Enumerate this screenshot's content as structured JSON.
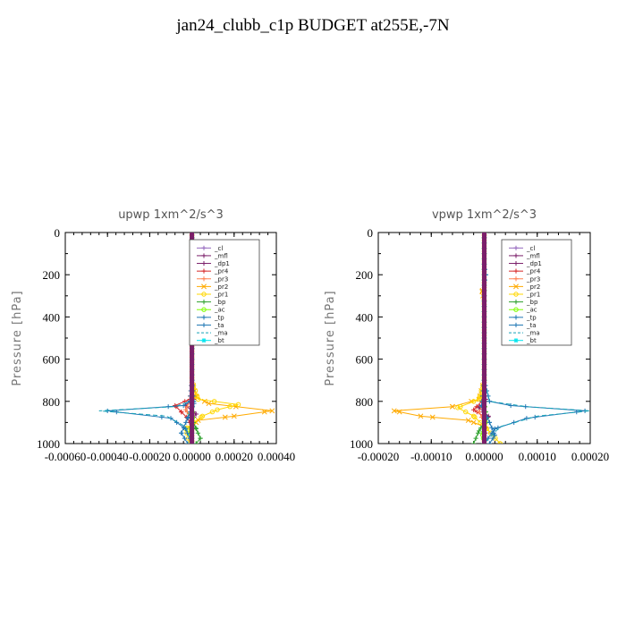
{
  "page_title": "jan24_clubb_c1p  BUDGET at255E,-7N",
  "chart_data": [
    {
      "type": "line",
      "title": "upwp   1xm^2/s^3",
      "ylabel": "Pressure [hPa]",
      "xlim": [
        -0.0006,
        0.0004
      ],
      "ylim": [
        1000,
        0
      ],
      "xticks": [
        "-0.00060",
        "-0.00040",
        "-0.00020",
        "0.00000",
        "0.00020",
        "0.00040"
      ],
      "yticks": [
        "0",
        "200",
        "400",
        "600",
        "800",
        "1000"
      ],
      "legend_position": "top-right",
      "series": [
        {
          "name": "_cl",
          "color": "#9467bd",
          "marker": "+",
          "dash": "",
          "points": [
            [
              0.0,
              0
            ],
            [
              0.0,
              200
            ],
            [
              0.0,
              400
            ],
            [
              0.0,
              600
            ],
            [
              0.0,
              800
            ],
            [
              0.0,
              900
            ],
            [
              0.0,
              1000
            ]
          ]
        },
        {
          "name": "_mfl",
          "color": "#7b1f6a",
          "marker": "+",
          "dash": "",
          "points": [
            [
              0.0,
              0
            ],
            [
              0.0,
              400
            ],
            [
              0.0,
              700
            ],
            [
              5e-06,
              800
            ],
            [
              -8e-06,
              850
            ],
            [
              4e-06,
              900
            ],
            [
              0.0,
              950
            ],
            [
              0.0,
              1000
            ]
          ]
        },
        {
          "name": "_dp1",
          "color": "#7b1f6a",
          "marker": "+",
          "dash": "",
          "points": [
            [
              0.0,
              0
            ],
            [
              0.0,
              700
            ],
            [
              1e-05,
              790
            ],
            [
              -3e-05,
              820
            ],
            [
              2e-05,
              860
            ],
            [
              -1e-05,
              900
            ],
            [
              0.0,
              1000
            ]
          ]
        },
        {
          "name": "_pr4",
          "color": "#d62728",
          "marker": "+",
          "dash": "",
          "points": [
            [
              0.0,
              0
            ],
            [
              0.0,
              700
            ],
            [
              -1e-05,
              790
            ],
            [
              -8e-05,
              820
            ],
            [
              -5e-05,
              850
            ],
            [
              -2e-05,
              880
            ],
            [
              0.0,
              920
            ],
            [
              0.0,
              1000
            ]
          ]
        },
        {
          "name": "_pr3",
          "color": "#ff7f50",
          "marker": "+",
          "dash": "",
          "points": [
            [
              0.0,
              0
            ],
            [
              0.0,
              700
            ],
            [
              -1e-05,
              800
            ],
            [
              -3e-05,
              840
            ],
            [
              0.0,
              880
            ],
            [
              0.0,
              1000
            ]
          ]
        },
        {
          "name": "_pr2",
          "color": "#ffaa00",
          "marker": "x",
          "dash": "",
          "points": [
            [
              0.0,
              0
            ],
            [
              0.0,
              700
            ],
            [
              2e-05,
              780
            ],
            [
              8e-05,
              810
            ],
            [
              0.00038,
              845
            ],
            [
              0.0002,
              870
            ],
            [
              3e-05,
              890
            ],
            [
              0.0,
              920
            ],
            [
              0.0,
              1000
            ]
          ]
        },
        {
          "name": "_pr1",
          "color": "#ffd700",
          "marker": "o",
          "dash": "",
          "points": [
            [
              0.0,
              0
            ],
            [
              0.0,
              700
            ],
            [
              3e-05,
              790
            ],
            [
              0.00022,
              815
            ],
            [
              0.00012,
              840
            ],
            [
              5e-05,
              870
            ],
            [
              -3e-05,
              930
            ],
            [
              -1e-05,
              1000
            ]
          ]
        },
        {
          "name": "_bp",
          "color": "#2ca02c",
          "marker": "+",
          "dash": "",
          "points": [
            [
              0.0,
              0
            ],
            [
              0.0,
              700
            ],
            [
              5e-06,
              800
            ],
            [
              -1e-05,
              860
            ],
            [
              2e-05,
              930
            ],
            [
              4e-05,
              975
            ],
            [
              2e-05,
              1000
            ]
          ]
        },
        {
          "name": "_ac",
          "color": "#7fff00",
          "marker": "o",
          "dash": "",
          "points": [
            [
              0.0,
              0
            ],
            [
              0.0,
              800
            ],
            [
              3e-06,
              880
            ],
            [
              -5e-06,
              940
            ],
            [
              0.0,
              1000
            ]
          ]
        },
        {
          "name": "_tp",
          "color": "#1f77b4",
          "marker": "+",
          "dash": "",
          "points": [
            [
              0.0,
              0
            ],
            [
              0.0,
              700
            ],
            [
              -1e-05,
              800
            ],
            [
              -4e-05,
              820
            ],
            [
              -0.0004,
              845
            ],
            [
              -0.0001,
              880
            ],
            [
              -3e-05,
              930
            ],
            [
              0.0,
              1000
            ]
          ]
        },
        {
          "name": "_ta",
          "color": "#1f77b4",
          "marker": "+",
          "dash": "",
          "points": [
            [
              0.0,
              0
            ],
            [
              0.0,
              700
            ],
            [
              1e-05,
              810
            ],
            [
              -2e-05,
              880
            ],
            [
              -5e-05,
              950
            ],
            [
              -2e-05,
              1000
            ]
          ]
        },
        {
          "name": "_ma",
          "color": "#17a2b8",
          "marker": "",
          "dash": "5,3",
          "points": [
            [
              0.0,
              0
            ],
            [
              0.0,
              700
            ],
            [
              -1e-05,
              800
            ],
            [
              -8e-05,
              825
            ],
            [
              -0.00044,
              845
            ],
            [
              -0.00012,
              870
            ],
            [
              -3e-05,
              920
            ],
            [
              0.0,
              1000
            ]
          ]
        },
        {
          "name": "_bt",
          "color": "#00e5ee",
          "marker": "*",
          "dash": "",
          "points": [
            [
              0.0,
              0
            ],
            [
              0.0,
              800
            ],
            [
              0.0,
              1000
            ]
          ]
        }
      ]
    },
    {
      "type": "line",
      "title": "vpwp   1xm^2/s^3",
      "ylabel": "Pressure [hPa]",
      "xlim": [
        -0.0002,
        0.0002
      ],
      "ylim": [
        1000,
        0
      ],
      "xticks": [
        "-0.00020",
        "-0.00010",
        "0.00000",
        "0.00010",
        "0.00020"
      ],
      "yticks": [
        "0",
        "200",
        "400",
        "600",
        "800",
        "1000"
      ],
      "legend_position": "top-right",
      "series": [
        {
          "name": "_cl",
          "color": "#9467bd",
          "marker": "+",
          "dash": "",
          "points": [
            [
              0.0,
              0
            ],
            [
              0.0,
              200
            ],
            [
              0.0,
              400
            ],
            [
              0.0,
              600
            ],
            [
              0.0,
              800
            ],
            [
              0.0,
              900
            ],
            [
              0.0,
              1000
            ]
          ]
        },
        {
          "name": "_mfl",
          "color": "#7b1f6a",
          "marker": "+",
          "dash": "",
          "points": [
            [
              0.0,
              0
            ],
            [
              0.0,
              400
            ],
            [
              0.0,
              700
            ],
            [
              2e-06,
              800
            ],
            [
              -3e-06,
              850
            ],
            [
              2e-06,
              900
            ],
            [
              0.0,
              1000
            ]
          ]
        },
        {
          "name": "_dp1",
          "color": "#7b1f6a",
          "marker": "+",
          "dash": "",
          "points": [
            [
              0.0,
              0
            ],
            [
              0.0,
              700
            ],
            [
              3e-06,
              790
            ],
            [
              -1e-05,
              830
            ],
            [
              8e-06,
              870
            ],
            [
              0.0,
              920
            ],
            [
              0.0,
              1000
            ]
          ]
        },
        {
          "name": "_pr4",
          "color": "#d62728",
          "marker": "+",
          "dash": "",
          "points": [
            [
              0.0,
              0
            ],
            [
              0.0,
              700
            ],
            [
              -5e-06,
              800
            ],
            [
              -2e-05,
              840
            ],
            [
              5e-06,
              880
            ],
            [
              0.0,
              1000
            ]
          ]
        },
        {
          "name": "_pr3",
          "color": "#ff7f50",
          "marker": "+",
          "dash": "",
          "points": [
            [
              0.0,
              0
            ],
            [
              0.0,
              700
            ],
            [
              0.0,
              800
            ],
            [
              -1e-05,
              850
            ],
            [
              0.0,
              900
            ],
            [
              0.0,
              1000
            ]
          ]
        },
        {
          "name": "_pr2",
          "color": "#ffaa00",
          "marker": "x",
          "dash": "",
          "points": [
            [
              0.0,
              0
            ],
            [
              0.0,
              250
            ],
            [
              -4e-06,
              280
            ],
            [
              0.0,
              330
            ],
            [
              0.0,
              700
            ],
            [
              -1e-05,
              790
            ],
            [
              -6e-05,
              825
            ],
            [
              -0.00017,
              845
            ],
            [
              -0.00012,
              870
            ],
            [
              -3e-05,
              890
            ],
            [
              0.0,
              920
            ],
            [
              0.0,
              1000
            ]
          ]
        },
        {
          "name": "_pr1",
          "color": "#ffd700",
          "marker": "o",
          "dash": "",
          "points": [
            [
              0.0,
              0
            ],
            [
              0.0,
              700
            ],
            [
              -1e-05,
              790
            ],
            [
              -5e-05,
              830
            ],
            [
              -2e-05,
              870
            ],
            [
              5e-06,
              930
            ],
            [
              3e-05,
              1000
            ]
          ]
        },
        {
          "name": "_bp",
          "color": "#2ca02c",
          "marker": "+",
          "dash": "",
          "points": [
            [
              0.0,
              0
            ],
            [
              0.0,
              700
            ],
            [
              0.0,
              800
            ],
            [
              5e-06,
              880
            ],
            [
              -1e-05,
              940
            ],
            [
              -2e-05,
              1000
            ]
          ]
        },
        {
          "name": "_ac",
          "color": "#7fff00",
          "marker": "o",
          "dash": "",
          "points": [
            [
              0.0,
              0
            ],
            [
              0.0,
              800
            ],
            [
              2e-06,
              900
            ],
            [
              -3e-06,
              960
            ],
            [
              0.0,
              1000
            ]
          ]
        },
        {
          "name": "_tp",
          "color": "#1f77b4",
          "marker": "+",
          "dash": "",
          "points": [
            [
              0.0,
              0
            ],
            [
              0.0,
              150
            ],
            [
              3e-06,
              200
            ],
            [
              0.0,
              250
            ],
            [
              0.0,
              700
            ],
            [
              1e-05,
              800
            ],
            [
              5e-05,
              820
            ],
            [
              0.00019,
              845
            ],
            [
              8e-05,
              880
            ],
            [
              2e-05,
              930
            ],
            [
              0.0,
              1000
            ]
          ]
        },
        {
          "name": "_ta",
          "color": "#1f77b4",
          "marker": "+",
          "dash": "",
          "points": [
            [
              0.0,
              0
            ],
            [
              0.0,
              700
            ],
            [
              -5e-06,
              820
            ],
            [
              1e-05,
              900
            ],
            [
              2e-05,
              960
            ],
            [
              1e-05,
              1000
            ]
          ]
        },
        {
          "name": "_ma",
          "color": "#17a2b8",
          "marker": "",
          "dash": "5,3",
          "points": [
            [
              0.0,
              0
            ],
            [
              0.0,
              700
            ],
            [
              1e-05,
              800
            ],
            [
              8e-05,
              825
            ],
            [
              0.0002,
              845
            ],
            [
              0.0001,
              870
            ],
            [
              3e-05,
              920
            ],
            [
              0.0,
              1000
            ]
          ]
        },
        {
          "name": "_bt",
          "color": "#00e5ee",
          "marker": "*",
          "dash": "",
          "points": [
            [
              0.0,
              0
            ],
            [
              0.0,
              800
            ],
            [
              0.0,
              1000
            ]
          ]
        }
      ]
    }
  ]
}
